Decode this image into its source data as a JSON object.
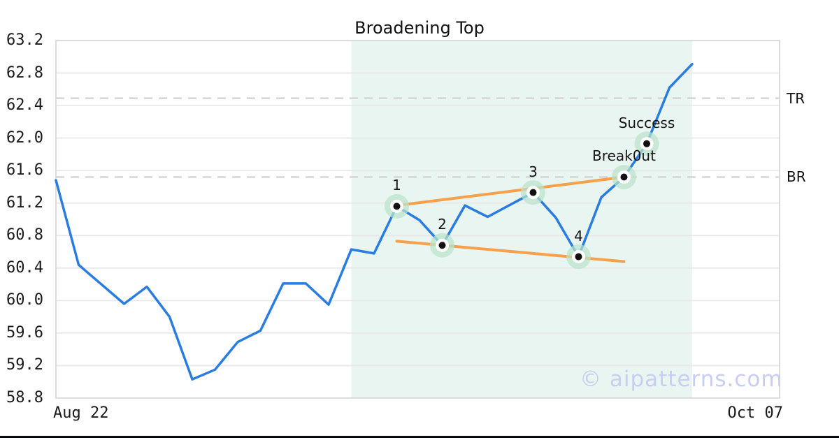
{
  "page": {
    "watermark": "© aipatterns.com"
  },
  "chart_data": {
    "type": "line",
    "title": "Broadening Top",
    "ylim": [
      58.8,
      63.2
    ],
    "y_tick_labels": [
      "58.8",
      "59.2",
      "59.6",
      "60.0",
      "60.4",
      "60.8",
      "61.2",
      "61.6",
      "62.0",
      "62.4",
      "62.8",
      "63.2"
    ],
    "x_tick_labels": {
      "left": "Aug 22",
      "right": "Oct 07"
    },
    "grid": "horizontal",
    "series": [
      {
        "name": "price",
        "color": "#2a7de0",
        "values": [
          61.48,
          60.44,
          60.2,
          59.96,
          60.17,
          59.8,
          59.03,
          59.15,
          59.49,
          59.63,
          60.21,
          60.21,
          59.95,
          60.63,
          60.58,
          61.16,
          60.99,
          60.68,
          61.17,
          61.03,
          61.18,
          61.33,
          61.02,
          60.54,
          61.27,
          61.52,
          61.93,
          62.62,
          62.91
        ]
      }
    ],
    "pattern_points": [
      {
        "label": "1",
        "index": 15,
        "value": 61.16
      },
      {
        "label": "2",
        "index": 17,
        "value": 60.68
      },
      {
        "label": "3",
        "index": 21,
        "value": 61.33
      },
      {
        "label": "4",
        "index": 23,
        "value": 60.54
      },
      {
        "label": "Break0ut",
        "index": 25,
        "value": 61.52
      },
      {
        "label": "Success",
        "index": 26,
        "value": 61.93
      }
    ],
    "trendlines": [
      {
        "name": "upper",
        "color": "#f6a04b",
        "from": {
          "index": 15,
          "value": 61.17
        },
        "to": {
          "index": 25,
          "value": 61.52
        }
      },
      {
        "name": "lower",
        "color": "#f6a04b",
        "from": {
          "index": 15,
          "value": 60.73
        },
        "to": {
          "index": 25,
          "value": 60.48
        }
      }
    ],
    "levels": [
      {
        "label": "TR",
        "value": 62.49
      },
      {
        "label": "BR",
        "value": 61.52
      }
    ],
    "highlight_region": {
      "from_index": 13,
      "to_index": 28,
      "color": "#e9f5f0"
    },
    "marker_style": {
      "halo_color": "#b9e3c9",
      "ring_color": "#ffffff",
      "dot_color": "#111111"
    }
  }
}
